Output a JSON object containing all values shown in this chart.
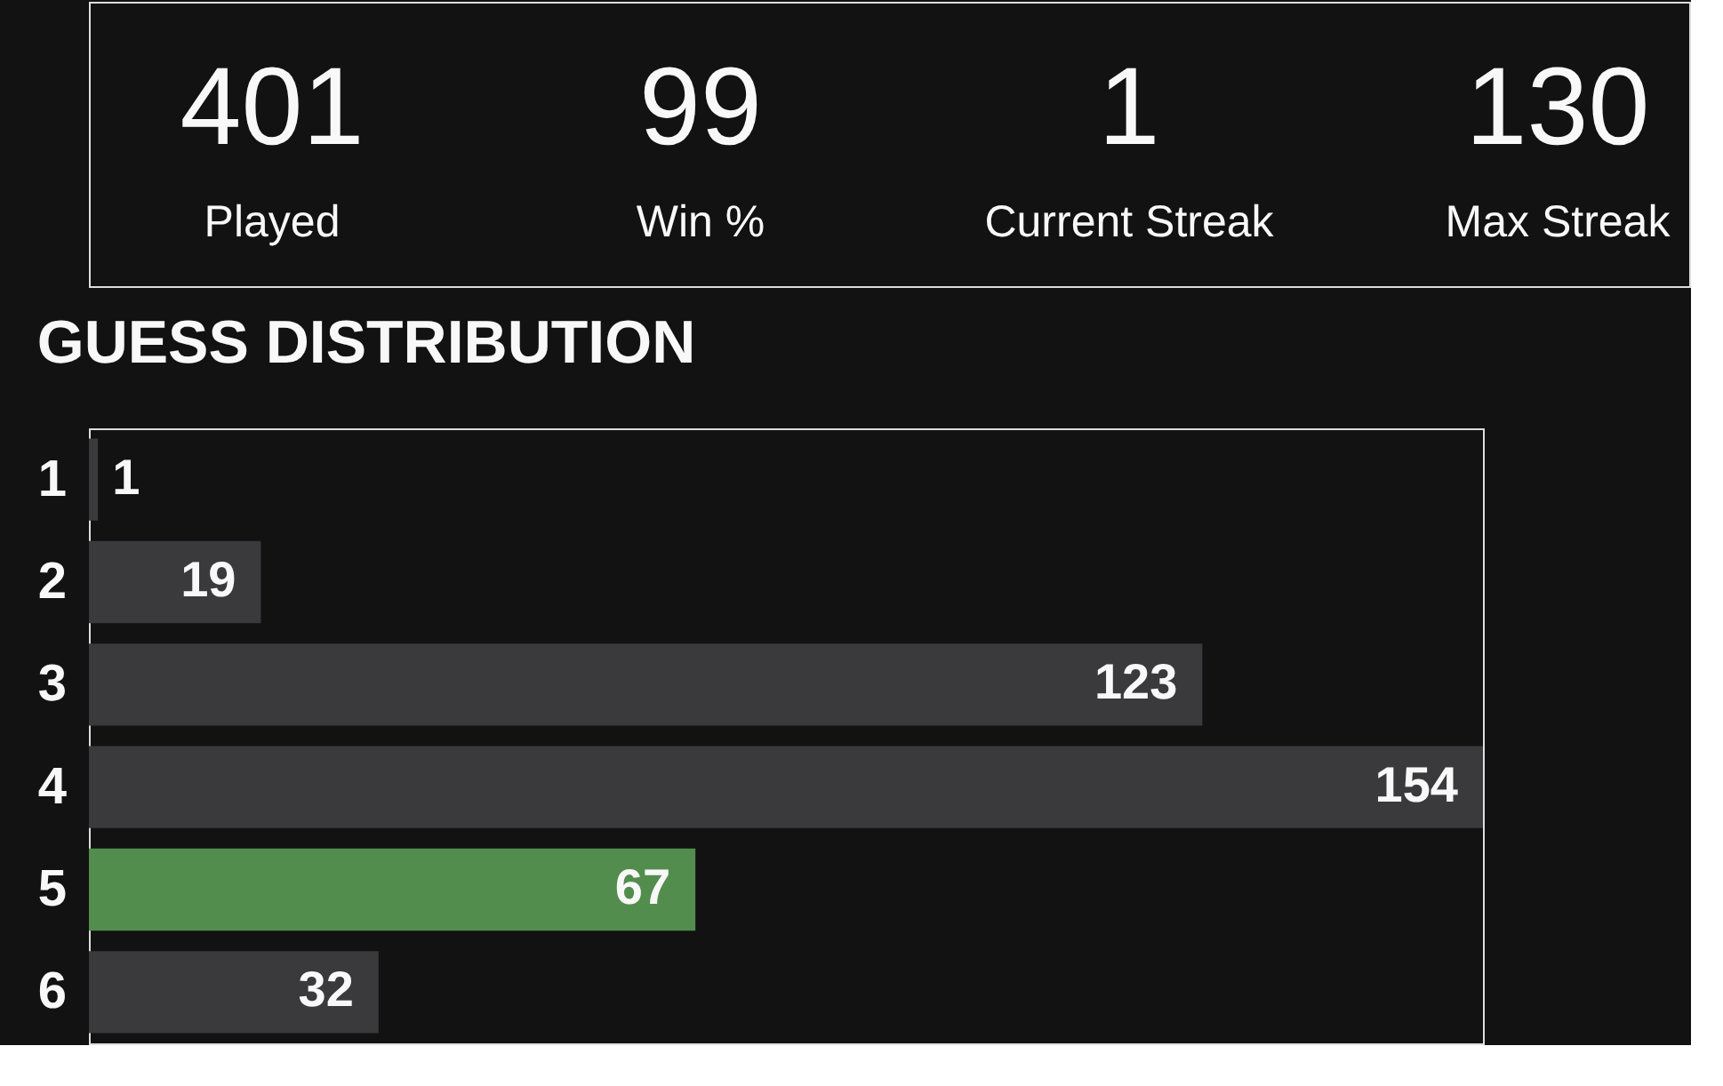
{
  "chart_data": [
    {
      "type": "other",
      "categories": [
        "Played",
        "Win %",
        "Current Streak",
        "Max Streak"
      ],
      "values": [
        401,
        99,
        1,
        130
      ],
      "data_labels": true
    },
    {
      "type": "bar",
      "orientation": "horizontal",
      "title": "GUESS DISTRIBUTION",
      "categories": [
        "1",
        "2",
        "3",
        "4",
        "5",
        "6"
      ],
      "values": [
        1,
        19,
        123,
        154,
        67,
        32
      ],
      "colors": [
        "#3a3a3c",
        "#3a3a3c",
        "#3a3a3c",
        "#3a3a3c",
        "#538d4e",
        "#3a3a3c"
      ],
      "data_labels": true,
      "tick_labels": "y",
      "legend": false,
      "grid": false
    }
  ]
}
